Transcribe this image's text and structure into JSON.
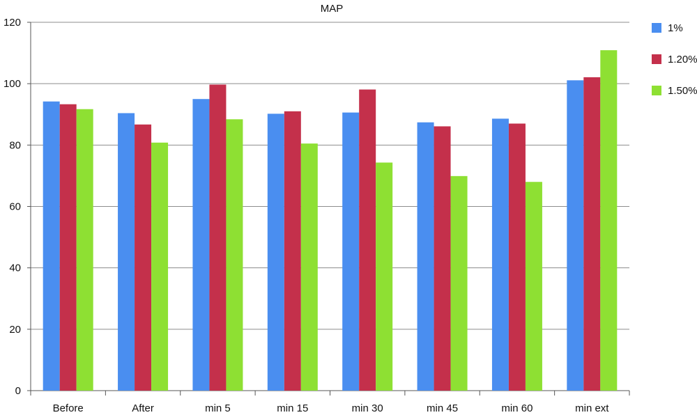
{
  "chart_data": {
    "type": "bar",
    "title": "MAP",
    "xlabel": "",
    "ylabel": "",
    "ylim": [
      0,
      120
    ],
    "yticks": [
      0,
      20,
      40,
      60,
      80,
      100,
      120
    ],
    "grid": true,
    "legend_position": "right",
    "categories": [
      "Before",
      "After",
      "min 5",
      "min 15",
      "min 30",
      "min 45",
      "min 60",
      "min ext"
    ],
    "series": [
      {
        "name": "1%",
        "color": "#4a8ef0",
        "values": [
          94.2,
          90.4,
          95.0,
          90.2,
          90.6,
          87.4,
          88.6,
          101.1
        ]
      },
      {
        "name": "1.20%",
        "color": "#c4304b",
        "values": [
          93.3,
          86.7,
          99.7,
          91.0,
          98.1,
          86.1,
          87.0,
          102.1
        ]
      },
      {
        "name": "1.50%",
        "color": "#8ee033",
        "values": [
          91.7,
          80.8,
          88.4,
          80.5,
          74.3,
          69.9,
          68.0,
          110.9
        ]
      }
    ]
  }
}
